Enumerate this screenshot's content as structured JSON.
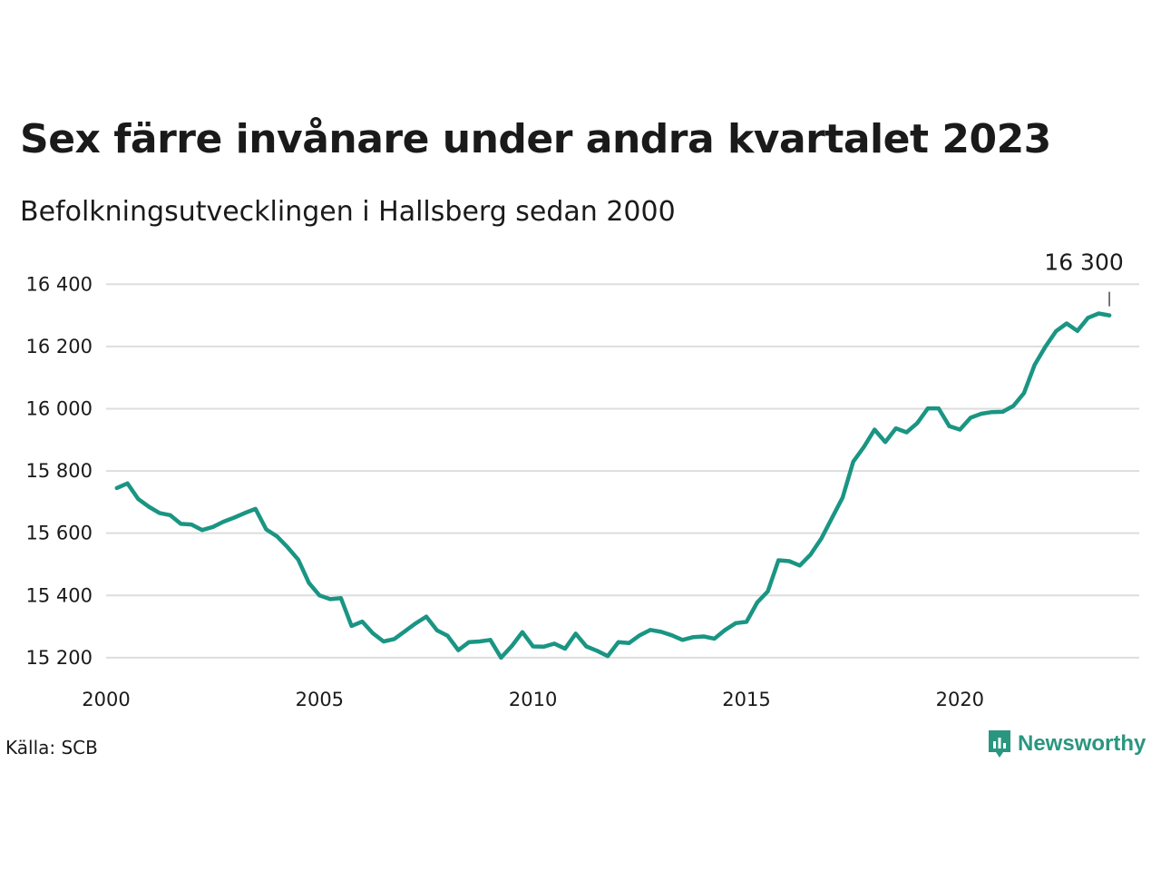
{
  "header": {
    "title": "Sex färre invånare under andra kvartalet 2023",
    "subtitle": "Befolkningsutvecklingen i Hallsberg sedan 2000"
  },
  "footer": {
    "source": "Källa: SCB",
    "brand": "Newsworthy"
  },
  "colors": {
    "line": "#1a9583",
    "grid": "#dddddd",
    "brand": "#2a9680"
  },
  "chart_data": {
    "type": "line",
    "x_is_time": true,
    "ylim": [
      15150,
      16430
    ],
    "xlim": [
      2000,
      2024.2
    ],
    "grid": "horizontal",
    "y_ticks": [
      15200,
      15400,
      15600,
      15800,
      16000,
      16200,
      16400
    ],
    "y_tick_labels": [
      "15 200",
      "15 400",
      "15 600",
      "15 800",
      "16 000",
      "16 200",
      "16 400"
    ],
    "x_ticks": [
      2000,
      2005,
      2010,
      2015,
      2020
    ],
    "x_tick_labels": [
      "2000",
      "2005",
      "2010",
      "2015",
      "2020"
    ],
    "end_label": "16 300",
    "series": [
      {
        "x": [
          2000.25,
          2000.5,
          2000.75,
          2001.0,
          2001.25,
          2001.5,
          2001.75,
          2002.0,
          2002.25,
          2002.5,
          2002.75,
          2003.0,
          2003.25,
          2003.5,
          2003.75,
          2004.0,
          2004.25,
          2004.5,
          2004.75,
          2005.0,
          2005.25,
          2005.5,
          2005.75,
          2006.0,
          2006.25,
          2006.5,
          2006.75,
          2007.0,
          2007.25,
          2007.5,
          2007.75,
          2008.0,
          2008.25,
          2008.5,
          2008.75,
          2009.0,
          2009.25,
          2009.5,
          2009.75,
          2010.0,
          2010.25,
          2010.5,
          2010.75,
          2011.0,
          2011.25,
          2011.5,
          2011.75,
          2012.0,
          2012.25,
          2012.5,
          2012.75,
          2013.0,
          2013.25,
          2013.5,
          2013.75,
          2014.0,
          2014.25,
          2014.5,
          2014.75,
          2015.0,
          2015.25,
          2015.5,
          2015.75,
          2016.0,
          2016.25,
          2016.5,
          2016.75,
          2017.0,
          2017.25,
          2017.5,
          2017.75,
          2018.0,
          2018.25,
          2018.5,
          2018.75,
          2019.0,
          2019.25,
          2019.5,
          2019.75,
          2020.0,
          2020.25,
          2020.5,
          2020.75,
          2021.0,
          2021.25,
          2021.5,
          2021.75,
          2022.0,
          2022.25,
          2022.5,
          2022.75,
          2023.0,
          2023.25,
          2023.5
        ],
        "values": [
          15745,
          15760,
          15710,
          15685,
          15665,
          15658,
          15630,
          15628,
          15610,
          15620,
          15637,
          15650,
          15665,
          15678,
          15612,
          15590,
          15555,
          15515,
          15440,
          15400,
          15388,
          15391,
          15302,
          15316,
          15278,
          15252,
          15260,
          15285,
          15310,
          15332,
          15288,
          15270,
          15224,
          15250,
          15252,
          15257,
          15200,
          15237,
          15282,
          15236,
          15235,
          15245,
          15229,
          15277,
          15236,
          15222,
          15205,
          15250,
          15247,
          15272,
          15289,
          15283,
          15272,
          15257,
          15266,
          15268,
          15261,
          15289,
          15311,
          15315,
          15377,
          15413,
          15513,
          15510,
          15496,
          15531,
          15582,
          15648,
          15714,
          15830,
          15877,
          15933,
          15893,
          15937,
          15924,
          15954,
          16001,
          16001,
          15944,
          15933,
          15971,
          15984,
          15989,
          15990,
          16009,
          16050,
          16141,
          16199,
          16249,
          16274,
          16250,
          16292,
          16306,
          16300
        ]
      }
    ]
  }
}
